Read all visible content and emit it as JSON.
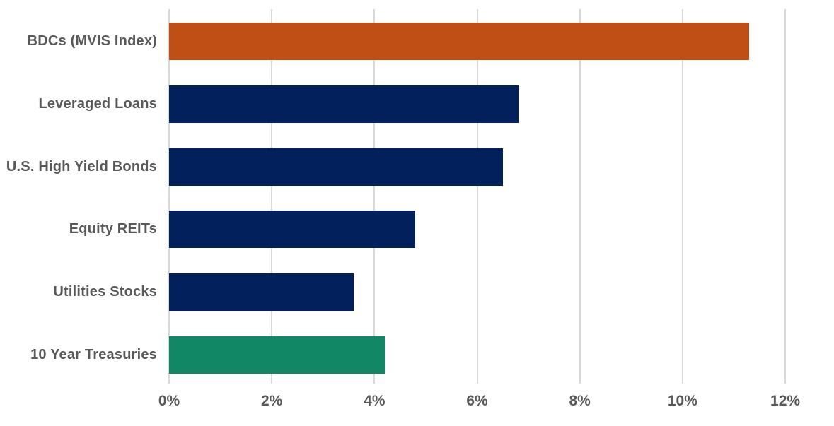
{
  "chart_data": {
    "type": "bar",
    "orientation": "horizontal",
    "title": "",
    "xlabel": "",
    "ylabel": "",
    "categories": [
      "BDCs (MVIS Index)",
      "Leveraged Loans",
      "U.S. High Yield Bonds",
      "Equity REITs",
      "Utilities Stocks",
      "10 Year Treasuries"
    ],
    "values": [
      11.3,
      6.8,
      6.5,
      4.8,
      3.6,
      4.2
    ],
    "value_unit": "%",
    "bar_colors": [
      "#C04F15",
      "#02215C",
      "#02215C",
      "#02215C",
      "#02215C",
      "#128766"
    ],
    "x_ticks": [
      "0%",
      "2%",
      "4%",
      "6%",
      "8%",
      "10%",
      "12%"
    ],
    "x_tick_values": [
      0,
      2,
      4,
      6,
      8,
      10,
      12
    ],
    "xlim": [
      0,
      12.95
    ],
    "grid": "vertical",
    "legend": "none"
  },
  "colors": {
    "background": "#FFFFFF",
    "gridline": "#D9D9D9",
    "category_label": "#595959",
    "tick_label": "#595959"
  }
}
